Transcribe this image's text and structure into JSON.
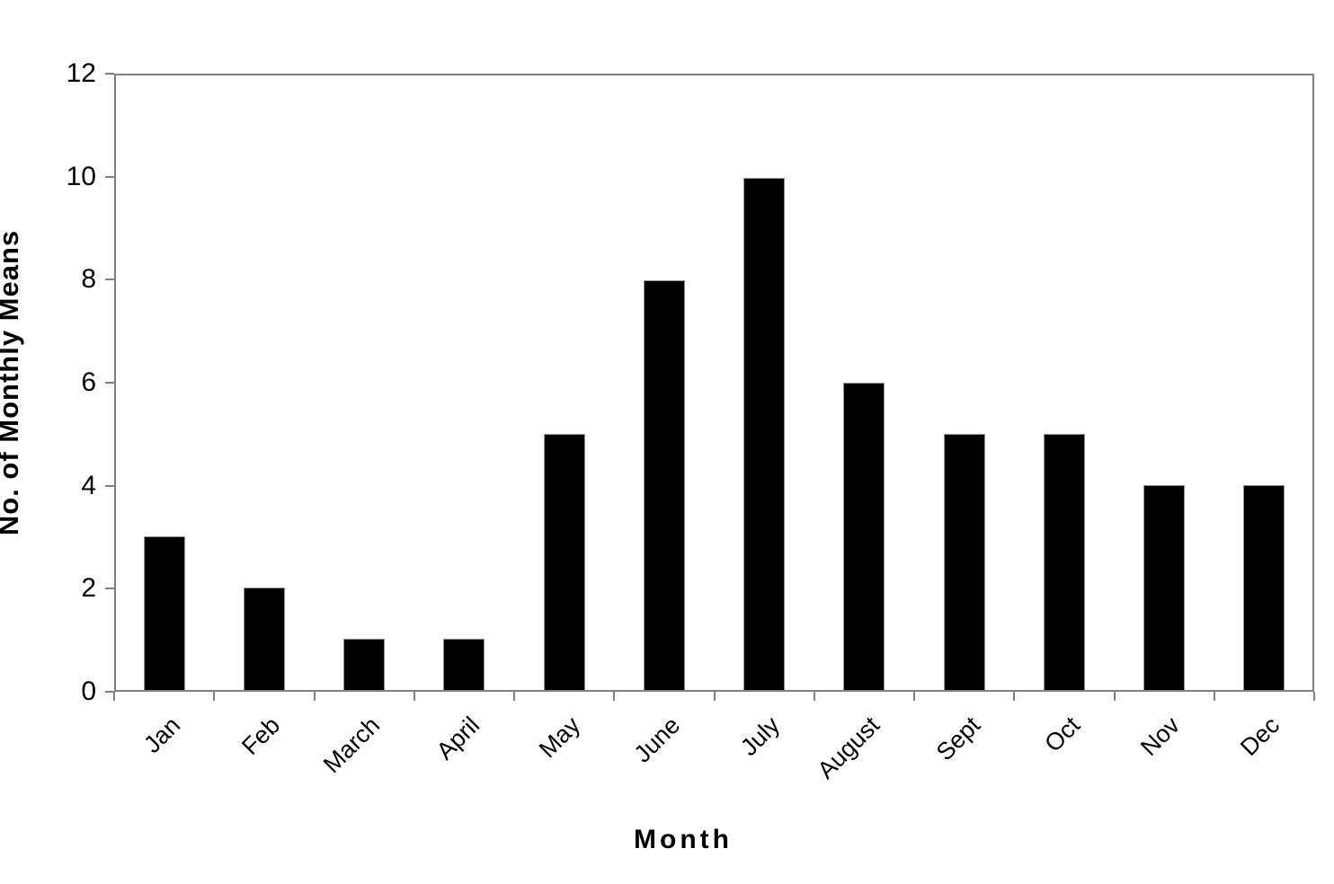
{
  "chart_data": {
    "type": "bar",
    "categories": [
      "Jan",
      "Feb",
      "March",
      "April",
      "May",
      "June",
      "July",
      "August",
      "Sept",
      "Oct",
      "Nov",
      "Dec"
    ],
    "values": [
      3,
      2,
      1,
      1,
      5,
      8,
      10,
      6,
      5,
      5,
      4,
      4
    ],
    "title": "",
    "xlabel": "Month",
    "ylabel": "No. of Monthly Means",
    "ylim": [
      0,
      12
    ],
    "ytick_step": 2,
    "yticks": [
      0,
      2,
      4,
      6,
      8,
      10,
      12
    ],
    "grid": false,
    "legend": "none",
    "bar_color": "#000000",
    "bar_border_color": "#909090",
    "axis_color": "#808080",
    "text_color": "#000000",
    "background_color": "#ffffff",
    "x_label_rotation_deg": -45
  }
}
